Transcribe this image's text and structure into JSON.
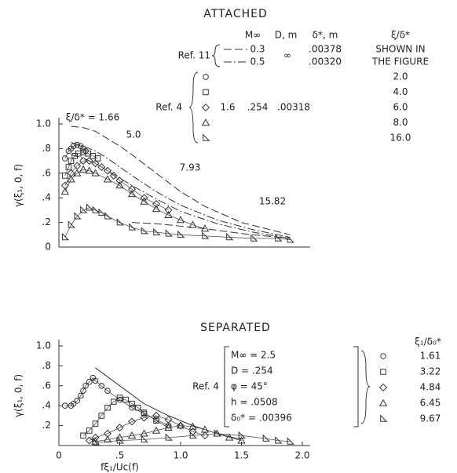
{
  "chart_data": [
    {
      "type": "scatter",
      "title": "ATTACHED",
      "ylabel": "γ(ξ₁, 0, f)",
      "xlim": [
        0,
        2
      ],
      "ylim": [
        0,
        1
      ],
      "yticks": [
        {
          "value": 0,
          "label": "0"
        },
        {
          "value": 0.2,
          "label": ".2"
        },
        {
          "value": 0.4,
          "label": ".4"
        },
        {
          "value": 0.6,
          "label": ".6"
        },
        {
          "value": 0.8,
          "label": ".8"
        },
        {
          "value": 1,
          "label": "1.0"
        }
      ],
      "curves": [
        {
          "label": "ξ/δ* = 1.66",
          "dash": "10 4",
          "x": [
            0.1,
            0.2,
            0.3,
            0.4,
            0.5,
            0.6,
            0.8,
            1.0,
            1.2,
            1.5,
            1.9
          ],
          "values": [
            0.98,
            0.97,
            0.94,
            0.88,
            0.82,
            0.75,
            0.6,
            0.45,
            0.33,
            0.2,
            0.1
          ]
        },
        {
          "label": "5.0",
          "dash": "10 3 2 3",
          "x": [
            0.1,
            0.2,
            0.3,
            0.4,
            0.5,
            0.6,
            0.8,
            1.0,
            1.3,
            1.6,
            1.9
          ],
          "values": [
            0.85,
            0.82,
            0.78,
            0.72,
            0.65,
            0.58,
            0.45,
            0.34,
            0.22,
            0.14,
            0.08
          ]
        },
        {
          "label": "7.93",
          "dash": "10 3 2 3",
          "x": [
            0.1,
            0.2,
            0.3,
            0.4,
            0.5,
            0.6,
            0.8,
            1.0,
            1.3,
            1.6,
            1.9
          ],
          "values": [
            0.75,
            0.72,
            0.68,
            0.62,
            0.56,
            0.5,
            0.39,
            0.29,
            0.19,
            0.12,
            0.07
          ]
        },
        {
          "label": "15.82",
          "dash": "10 4",
          "x": [
            0.6,
            0.8,
            1.0,
            1.2,
            1.5,
            1.9
          ],
          "values": [
            0.2,
            0.19,
            0.17,
            0.15,
            0.11,
            0.07
          ]
        }
      ],
      "series": [
        {
          "name": "2.0",
          "marker": "circle",
          "x": [
            0.05,
            0.08,
            0.1,
            0.12,
            0.15,
            0.18,
            0.2,
            0.22
          ],
          "values": [
            0.72,
            0.78,
            0.8,
            0.82,
            0.83,
            0.82,
            0.8,
            0.78
          ]
        },
        {
          "name": "4.0",
          "marker": "square",
          "x": [
            0.05,
            0.08,
            0.1,
            0.13,
            0.16,
            0.2,
            0.24,
            0.28,
            0.32
          ],
          "values": [
            0.58,
            0.65,
            0.7,
            0.74,
            0.76,
            0.77,
            0.76,
            0.74,
            0.72
          ]
        },
        {
          "name": "6.0",
          "marker": "diamond",
          "x": [
            0.05,
            0.1,
            0.15,
            0.2,
            0.25,
            0.3,
            0.35,
            0.4,
            0.45,
            0.5,
            0.6,
            0.7,
            0.8,
            0.9
          ],
          "values": [
            0.5,
            0.6,
            0.66,
            0.7,
            0.7,
            0.68,
            0.65,
            0.62,
            0.58,
            0.54,
            0.47,
            0.4,
            0.35,
            0.3
          ]
        },
        {
          "name": "8.0",
          "marker": "triangle",
          "x": [
            0.05,
            0.1,
            0.15,
            0.2,
            0.25,
            0.3,
            0.4,
            0.5,
            0.6,
            0.7,
            0.8,
            0.9,
            1.0,
            1.1,
            1.2
          ],
          "values": [
            0.45,
            0.55,
            0.6,
            0.63,
            0.62,
            0.6,
            0.55,
            0.5,
            0.43,
            0.37,
            0.31,
            0.26,
            0.22,
            0.18,
            0.15
          ]
        },
        {
          "name": "16.0",
          "marker": "right-triangle",
          "x": [
            0.05,
            0.1,
            0.15,
            0.2,
            0.25,
            0.3,
            0.35,
            0.4,
            0.5,
            0.6,
            0.7,
            0.8,
            0.9,
            1.0,
            1.2,
            1.4,
            1.6,
            1.8,
            1.9
          ],
          "values": [
            0.08,
            0.18,
            0.25,
            0.3,
            0.32,
            0.3,
            0.28,
            0.25,
            0.2,
            0.16,
            0.13,
            0.12,
            0.11,
            0.1,
            0.09,
            0.08,
            0.07,
            0.07,
            0.06
          ]
        }
      ],
      "legend": {
        "headers": [
          "M∞",
          "D, m",
          "δ*, m",
          "ξ/δ*"
        ],
        "ref11": {
          "label": "Ref. 11",
          "mach": [
            "0.3",
            "0.5"
          ],
          "dash": [
            "10 4",
            "10 3 2 3"
          ],
          "diameter": "∞",
          "thickness": [
            ".00378",
            ".00320"
          ],
          "ratio": [
            "SHOWN IN",
            "THE FIGURE"
          ]
        },
        "ref4": {
          "label": "Ref. 4",
          "mach": "1.6",
          "diameter": ".254",
          "thickness": ".00318"
        }
      }
    },
    {
      "type": "scatter",
      "title": "SEPARATED",
      "ylabel": "γ(ξ₁, 0, f)",
      "xlabel": "fξ₁/Uc(f)",
      "xlim": [
        0,
        2
      ],
      "ylim": [
        0,
        1
      ],
      "xticks": [
        0,
        {
          "value": 0.5,
          "label": ".5"
        },
        {
          "value": 1,
          "label": "1.0"
        },
        {
          "value": 1.5,
          "label": "1.5"
        },
        {
          "value": 2,
          "label": "2.0"
        }
      ],
      "yticks": [
        {
          "value": 0.2,
          "label": ".2"
        },
        {
          "value": 0.4,
          "label": ".4"
        },
        {
          "value": 0.6,
          "label": ".6"
        },
        {
          "value": 0.8,
          "label": ".8"
        },
        {
          "value": 1,
          "label": "1.0"
        }
      ],
      "curves": [
        {
          "dash": "none",
          "x": [
            0.3,
            0.5,
            0.7,
            0.9,
            1.1,
            1.3,
            1.5
          ],
          "values": [
            0.78,
            0.6,
            0.42,
            0.3,
            0.2,
            0.12,
            0.06
          ]
        }
      ],
      "series": [
        {
          "name": "1.61",
          "marker": "circle",
          "x": [
            0.05,
            0.1,
            0.12,
            0.15,
            0.18,
            0.2,
            0.22,
            0.25,
            0.28,
            0.3,
            0.35,
            0.4,
            0.5,
            0.6,
            0.7,
            0.8,
            0.9
          ],
          "values": [
            0.4,
            0.4,
            0.42,
            0.45,
            0.5,
            0.55,
            0.6,
            0.64,
            0.68,
            0.65,
            0.6,
            0.55,
            0.46,
            0.38,
            0.32,
            0.26,
            0.2
          ]
        },
        {
          "name": "3.22",
          "marker": "square",
          "x": [
            0.2,
            0.25,
            0.3,
            0.35,
            0.4,
            0.45,
            0.5,
            0.55,
            0.6,
            0.65,
            0.7,
            0.8,
            0.9
          ],
          "values": [
            0.1,
            0.15,
            0.22,
            0.3,
            0.38,
            0.44,
            0.48,
            0.46,
            0.42,
            0.38,
            0.33,
            0.25,
            0.18
          ]
        },
        {
          "name": "4.84",
          "marker": "diamond",
          "x": [
            0.25,
            0.3,
            0.4,
            0.5,
            0.6,
            0.7,
            0.8,
            0.9,
            1.0,
            1.1,
            1.2
          ],
          "values": [
            0.05,
            0.08,
            0.12,
            0.18,
            0.24,
            0.28,
            0.3,
            0.26,
            0.2,
            0.14,
            0.1
          ]
        },
        {
          "name": "6.45",
          "marker": "triangle",
          "x": [
            0.3,
            0.4,
            0.5,
            0.6,
            0.7,
            0.8,
            0.9,
            1.0,
            1.1,
            1.2,
            1.3,
            1.4,
            1.5
          ],
          "values": [
            0.04,
            0.06,
            0.08,
            0.1,
            0.12,
            0.15,
            0.18,
            0.2,
            0.19,
            0.16,
            0.12,
            0.08,
            0.05
          ]
        },
        {
          "name": "9.67",
          "marker": "right-triangle",
          "x": [
            0.3,
            0.5,
            0.7,
            0.9,
            1.1,
            1.3,
            1.5,
            1.7,
            1.8,
            1.9
          ],
          "values": [
            0.03,
            0.05,
            0.06,
            0.08,
            0.1,
            0.12,
            0.1,
            0.07,
            0.05,
            0.04
          ]
        }
      ],
      "legend": {
        "label": "Ref. 4",
        "header": "ξ₁/δ₀*",
        "params": [
          "M∞ = 2.5",
          "D = .254",
          "φ = 45°",
          "h = .0508",
          "δ₀* = .00396"
        ]
      }
    }
  ]
}
